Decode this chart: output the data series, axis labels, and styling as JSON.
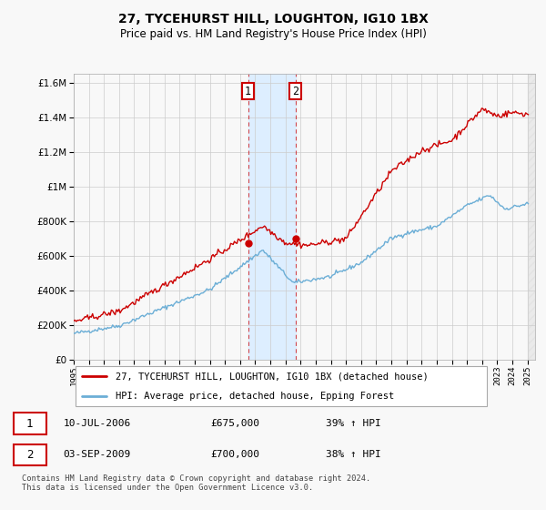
{
  "title": "27, TYCEHURST HILL, LOUGHTON, IG10 1BX",
  "subtitle": "Price paid vs. HM Land Registry's House Price Index (HPI)",
  "legend_line1": "27, TYCEHURST HILL, LOUGHTON, IG10 1BX (detached house)",
  "legend_line2": "HPI: Average price, detached house, Epping Forest",
  "footer": "Contains HM Land Registry data © Crown copyright and database right 2024.\nThis data is licensed under the Open Government Licence v3.0.",
  "sale1_date": "10-JUL-2006",
  "sale1_price": "£675,000",
  "sale1_hpi": "39% ↑ HPI",
  "sale2_date": "03-SEP-2009",
  "sale2_price": "£700,000",
  "sale2_hpi": "38% ↑ HPI",
  "sale1_year": 2006.53,
  "sale1_value": 675000,
  "sale2_year": 2009.67,
  "sale2_value": 700000,
  "shade_x1": 2006.53,
  "shade_x2": 2009.67,
  "hpi_color": "#6baed6",
  "price_color": "#cc0000",
  "shade_color": "#ddeeff",
  "background_color": "#f8f8f8",
  "grid_color": "#cccccc",
  "ylim": [
    0,
    1650000
  ],
  "xlim_start": 1995,
  "xlim_end": 2025.5,
  "yticks": [
    0,
    200000,
    400000,
    600000,
    800000,
    1000000,
    1200000,
    1400000,
    1600000
  ],
  "ytick_labels": [
    "£0",
    "£200K",
    "£400K",
    "£600K",
    "£800K",
    "£1M",
    "£1.2M",
    "£1.4M",
    "£1.6M"
  ]
}
